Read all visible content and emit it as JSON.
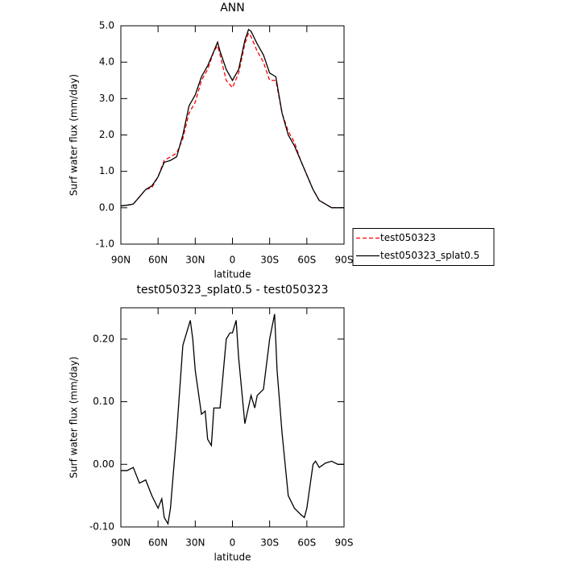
{
  "chart_data": [
    {
      "type": "line",
      "title": "ANN",
      "xlabel": "latitude",
      "ylabel": "Surf water flux (mm/day)",
      "x": [
        90,
        85,
        80,
        75,
        70,
        65,
        60,
        55,
        50,
        45,
        40,
        35,
        30,
        25,
        20,
        15,
        12,
        10,
        5,
        0,
        -5,
        -10,
        -13,
        -15,
        -20,
        -25,
        -30,
        -35,
        -40,
        -45,
        -50,
        -55,
        -60,
        -65,
        -70,
        -75,
        -80,
        -85,
        -90
      ],
      "series": [
        {
          "name": "test050323",
          "color": "#ff0000",
          "style": "dashed",
          "values": [
            0.05,
            0.07,
            0.1,
            0.3,
            0.5,
            0.55,
            0.85,
            1.3,
            1.4,
            1.5,
            1.9,
            2.6,
            2.9,
            3.5,
            3.8,
            4.3,
            4.45,
            4.2,
            3.5,
            3.3,
            3.7,
            4.5,
            4.8,
            4.7,
            4.3,
            4.0,
            3.5,
            3.5,
            2.6,
            2.1,
            1.8,
            1.3,
            0.9,
            0.5,
            0.2,
            0.1,
            0.0,
            0.0,
            0.0
          ]
        },
        {
          "name": "test050323_splat0.5",
          "color": "#000000",
          "style": "solid",
          "values": [
            0.05,
            0.07,
            0.1,
            0.3,
            0.5,
            0.6,
            0.85,
            1.25,
            1.3,
            1.4,
            2.0,
            2.8,
            3.1,
            3.6,
            3.9,
            4.3,
            4.55,
            4.3,
            3.8,
            3.5,
            3.8,
            4.6,
            4.9,
            4.85,
            4.5,
            4.2,
            3.7,
            3.6,
            2.6,
            2.0,
            1.7,
            1.3,
            0.9,
            0.5,
            0.2,
            0.1,
            0.0,
            0.0,
            0.0
          ]
        }
      ],
      "legend_position": "right",
      "xlim": [
        90,
        -90
      ],
      "xticks": [
        {
          "value": 90,
          "label": "90N"
        },
        {
          "value": 60,
          "label": "60N"
        },
        {
          "value": 30,
          "label": "30N"
        },
        0,
        {
          "value": -30,
          "label": "30S"
        },
        {
          "value": -60,
          "label": "60S"
        },
        {
          "value": -90,
          "label": "90S"
        }
      ],
      "ylim": [
        -1,
        5
      ],
      "yticks": [
        {
          "value": -1,
          "label": "-1.0"
        },
        {
          "value": 0,
          "label": "0.0"
        },
        {
          "value": 1,
          "label": "1.0"
        },
        {
          "value": 2,
          "label": "2.0"
        },
        {
          "value": 3,
          "label": "3.0"
        },
        {
          "value": 4,
          "label": "4.0"
        },
        {
          "value": 5,
          "label": "5.0"
        }
      ]
    },
    {
      "type": "line",
      "title": "test050323_splat0.5 - test050323",
      "xlabel": "latitude",
      "ylabel": "Surf water flux (mm/day)",
      "x": [
        90,
        85,
        80,
        75,
        70,
        65,
        60,
        57,
        55,
        52,
        50,
        45,
        40,
        34,
        32,
        30,
        25,
        22,
        20,
        17,
        15,
        10,
        5,
        2,
        0,
        -3,
        -5,
        -10,
        -15,
        -18,
        -20,
        -25,
        -30,
        -34,
        -36,
        -40,
        -45,
        -50,
        -55,
        -58,
        -60,
        -65,
        -67,
        -70,
        -75,
        -80,
        -85,
        -90
      ],
      "values": [
        -0.01,
        -0.01,
        -0.005,
        -0.03,
        -0.025,
        -0.05,
        -0.07,
        -0.055,
        -0.085,
        -0.095,
        -0.07,
        0.05,
        0.19,
        0.23,
        0.2,
        0.15,
        0.08,
        0.085,
        0.04,
        0.03,
        0.09,
        0.09,
        0.2,
        0.21,
        0.21,
        0.23,
        0.17,
        0.065,
        0.11,
        0.09,
        0.11,
        0.12,
        0.2,
        0.24,
        0.15,
        0.05,
        -0.05,
        -0.07,
        -0.08,
        -0.085,
        -0.07,
        0.0,
        0.005,
        -0.005,
        0.002,
        0.005,
        0.0,
        0.0
      ],
      "color": "#000000",
      "xlim": [
        90,
        -90
      ],
      "xticks": [
        {
          "value": 90,
          "label": "90N"
        },
        {
          "value": 60,
          "label": "60N"
        },
        {
          "value": 30,
          "label": "30N"
        },
        0,
        {
          "value": -30,
          "label": "30S"
        },
        {
          "value": -60,
          "label": "60S"
        },
        {
          "value": -90,
          "label": "90S"
        }
      ],
      "ylim": [
        -0.1,
        0.25
      ],
      "yticks": [
        {
          "value": -0.1,
          "label": "-0.10"
        },
        {
          "value": 0,
          "label": "0.00"
        },
        {
          "value": 0.1,
          "label": "0.10"
        },
        {
          "value": 0.2,
          "label": "0.20"
        }
      ]
    }
  ]
}
